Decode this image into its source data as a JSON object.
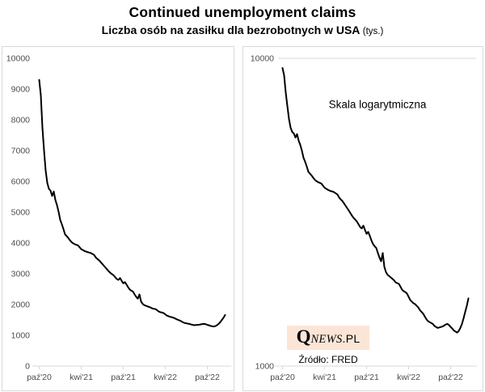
{
  "header": {
    "title": "Continued unemployment claims",
    "subtitle_bold": "Liczba osób na zasiłku dla bezrobotnych w USA",
    "subtitle_note": "(tys.)"
  },
  "right_panel": {
    "annotation": "Skala logarytmiczna"
  },
  "branding": {
    "logo_q": "Q",
    "logo_news": "NEWS",
    "logo_pl": ".PL",
    "logo_bg": "#fbe5d6",
    "source": "Źródło: FRED"
  },
  "colors": {
    "line": "#000000",
    "axis": "#d9d9d9",
    "tick_label": "#4d4d4d"
  },
  "chart_data": {
    "type": "line",
    "title": "Continued unemployment claims",
    "subtitle": "Liczba osób na zasiłku dla bezrobotnych w USA (tys.)",
    "x_tick_labels": [
      "paź'20",
      "kwi'21",
      "paź'21",
      "kwi'22",
      "paź'22"
    ],
    "x_tick_indices": [
      0,
      26,
      52,
      78,
      104
    ],
    "legend": "none",
    "series": [
      {
        "name": "Continued unemployment claims (tys.)",
        "values": [
          9300,
          8800,
          7740,
          7000,
          6350,
          5950,
          5760,
          5700,
          5530,
          5670,
          5400,
          5230,
          5010,
          4750,
          4610,
          4450,
          4280,
          4220,
          4160,
          4090,
          4030,
          3990,
          3960,
          3940,
          3920,
          3860,
          3800,
          3770,
          3740,
          3720,
          3700,
          3690,
          3670,
          3640,
          3610,
          3530,
          3480,
          3440,
          3380,
          3320,
          3260,
          3200,
          3140,
          3080,
          3030,
          2990,
          2950,
          2890,
          2830,
          2800,
          2860,
          2770,
          2690,
          2730,
          2650,
          2560,
          2490,
          2450,
          2420,
          2330,
          2250,
          2190,
          2330,
          2100,
          2020,
          1980,
          1960,
          1940,
          1920,
          1900,
          1870,
          1860,
          1850,
          1810,
          1770,
          1750,
          1740,
          1720,
          1680,
          1640,
          1620,
          1600,
          1590,
          1570,
          1550,
          1520,
          1500,
          1480,
          1450,
          1420,
          1400,
          1390,
          1380,
          1370,
          1350,
          1340,
          1330,
          1335,
          1340,
          1345,
          1355,
          1365,
          1370,
          1360,
          1340,
          1325,
          1305,
          1295,
          1285,
          1300,
          1330,
          1370,
          1430,
          1500,
          1570,
          1660
        ]
      }
    ],
    "panels": [
      {
        "name": "linear",
        "scale": "linear",
        "ylim": [
          0,
          10000
        ],
        "y_ticks": [
          0,
          1000,
          2000,
          3000,
          4000,
          5000,
          6000,
          7000,
          8000,
          9000,
          10000
        ],
        "gridlines": "none"
      },
      {
        "name": "log",
        "scale": "log",
        "ylim": [
          1000,
          10000
        ],
        "y_ticks": [
          1000,
          10000
        ],
        "gridline_at": 10000,
        "annotation": "Skala logarytmiczna"
      }
    ]
  }
}
